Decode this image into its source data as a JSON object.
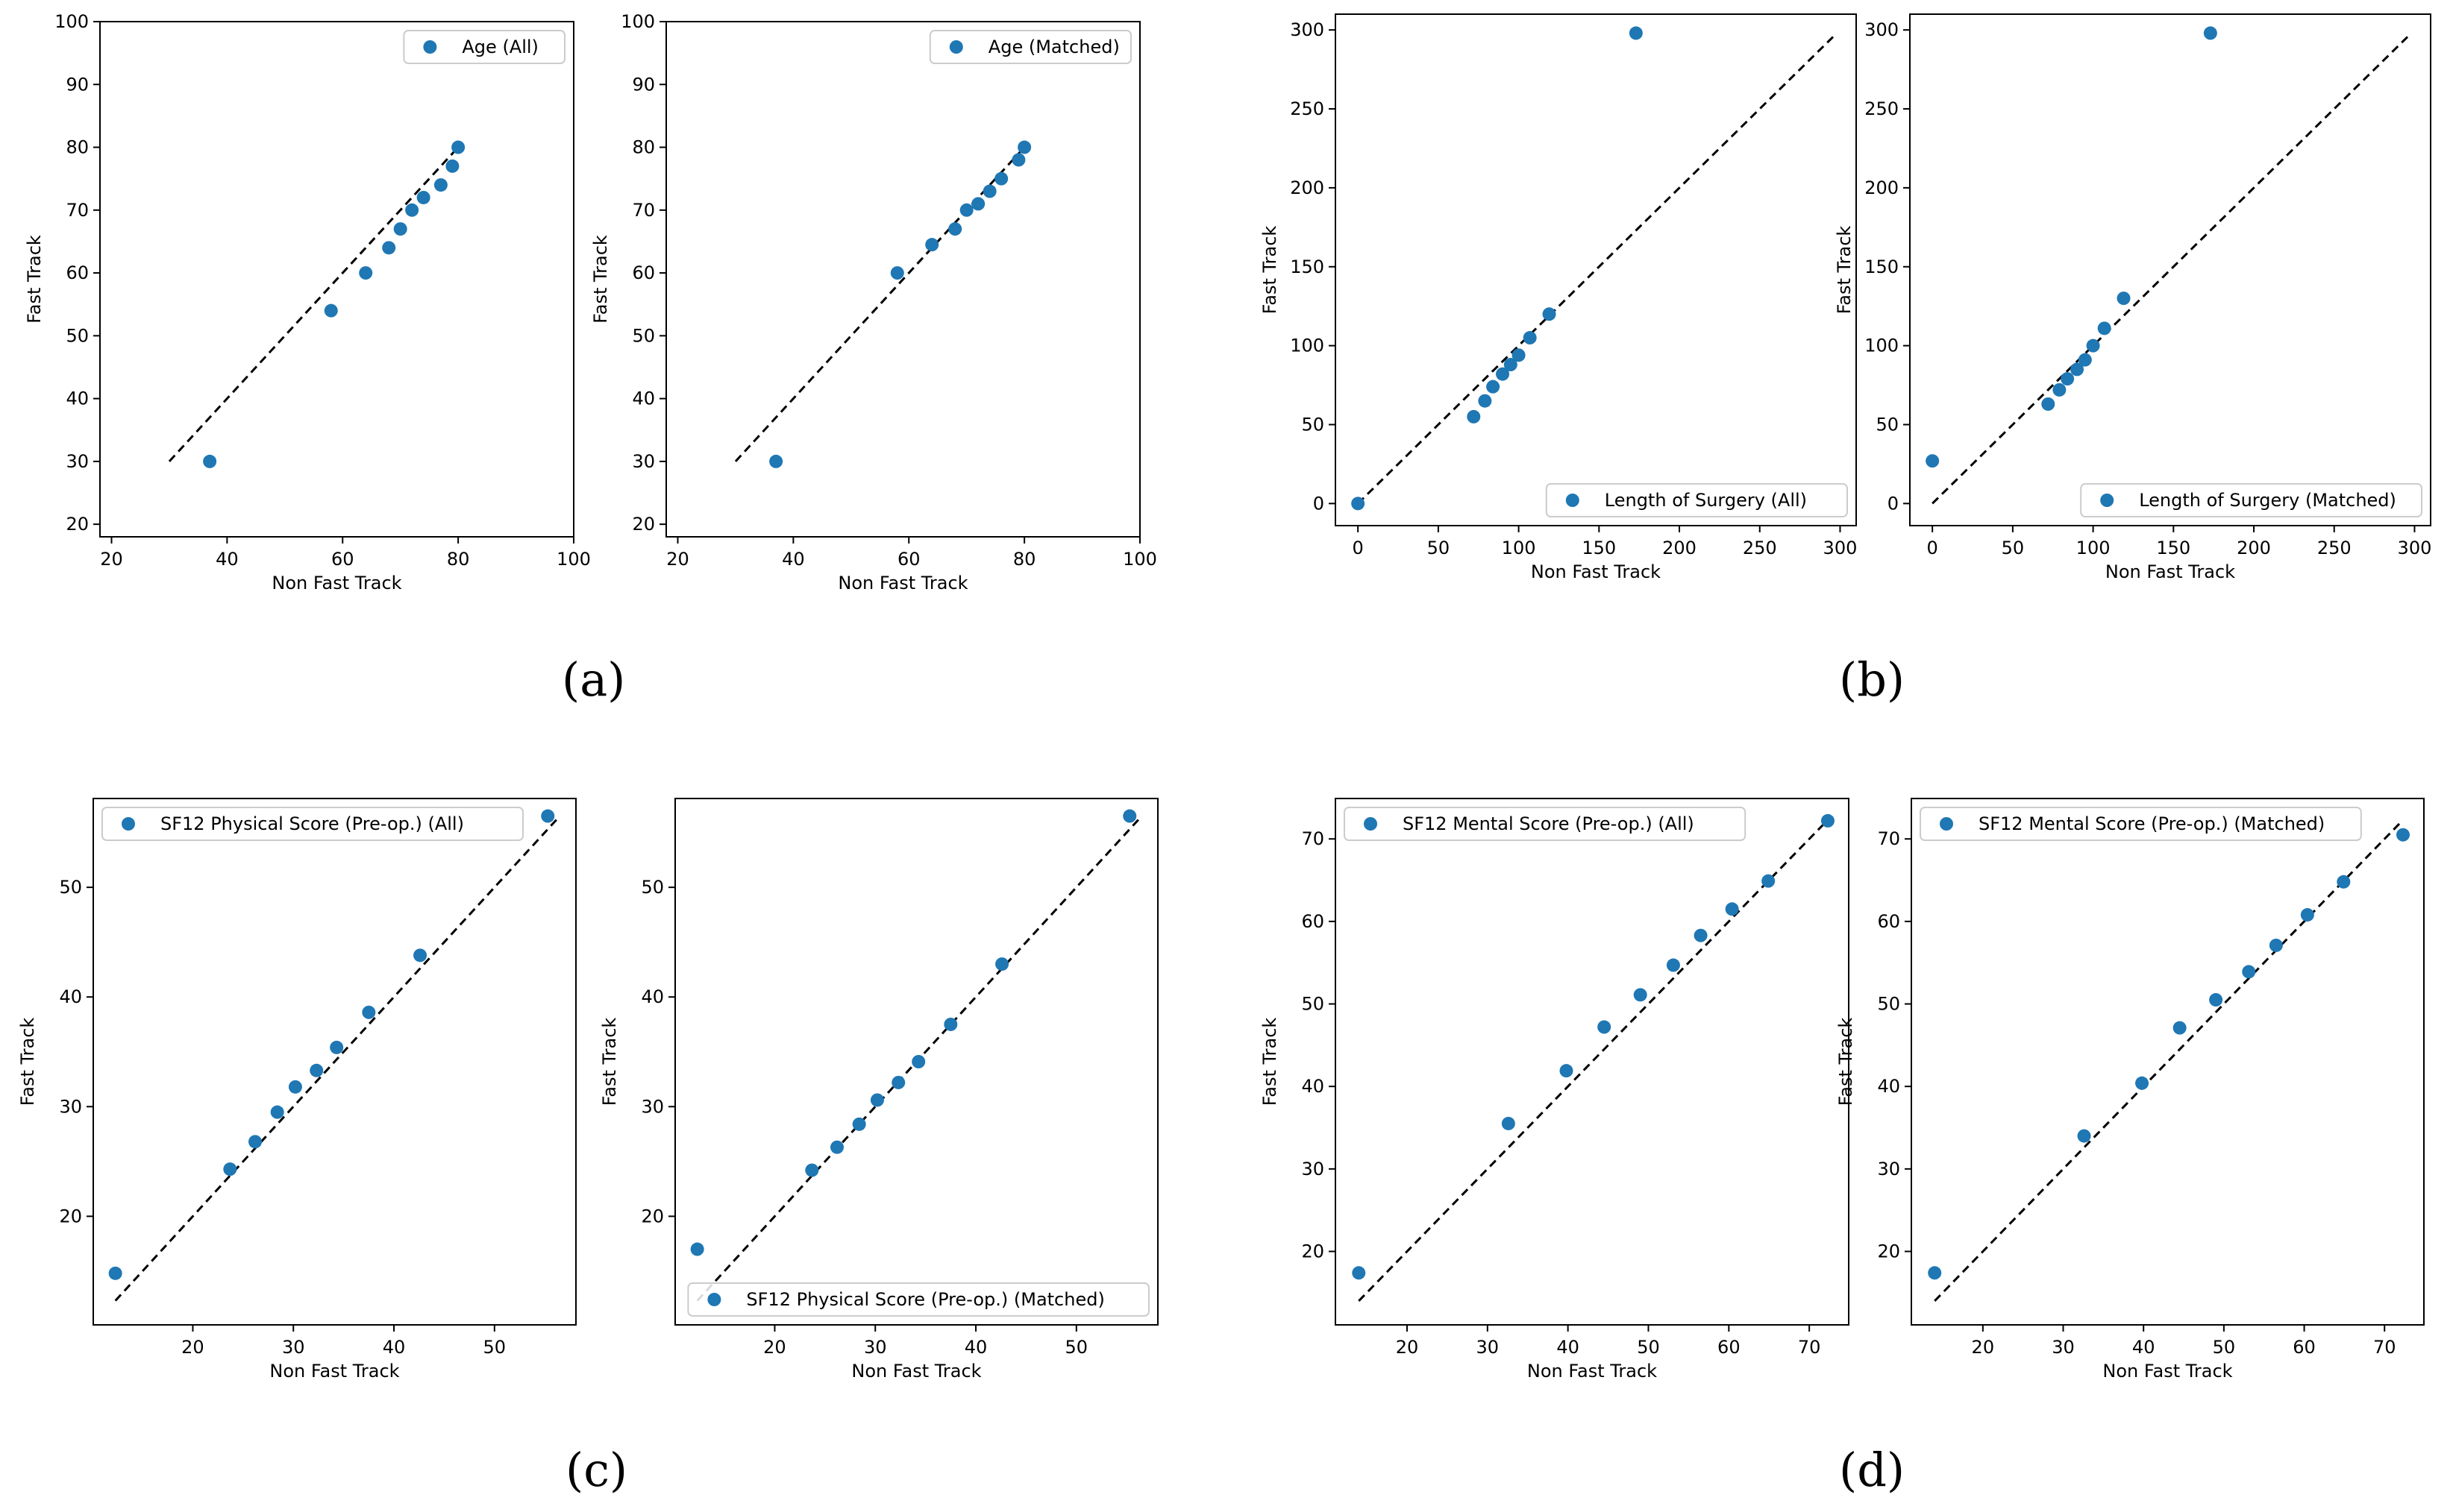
{
  "panel_labels": [
    "(a)",
    "(b)",
    "(c)",
    "(d)"
  ],
  "colors": {
    "marker": "#1f77b4",
    "diagonal": "#000000",
    "axis": "#000000",
    "legend_border": "#cccccc"
  },
  "chart_data": [
    {
      "type": "scatter",
      "panel": "(a)",
      "title": "",
      "xlabel": "Non Fast Track",
      "ylabel": "Fast Track",
      "xlim": [
        18,
        100
      ],
      "ylim": [
        18,
        100
      ],
      "xticks": [
        20,
        40,
        60,
        80,
        100
      ],
      "yticks": [
        20,
        30,
        40,
        50,
        60,
        70,
        80,
        90,
        100
      ],
      "legend": "Age (All)",
      "legend_loc": "top-right",
      "reference_line": [
        30,
        80
      ],
      "points": [
        [
          37,
          30
        ],
        [
          58,
          54
        ],
        [
          64,
          60
        ],
        [
          68,
          64
        ],
        [
          70,
          67
        ],
        [
          72,
          70
        ],
        [
          74,
          72
        ],
        [
          77,
          74
        ],
        [
          79,
          77
        ],
        [
          80,
          80
        ]
      ]
    },
    {
      "type": "scatter",
      "panel": "(a)",
      "title": "",
      "xlabel": "Non Fast Track",
      "ylabel": "Fast Track",
      "xlim": [
        18,
        100
      ],
      "ylim": [
        18,
        100
      ],
      "xticks": [
        20,
        40,
        60,
        80,
        100
      ],
      "yticks": [
        20,
        30,
        40,
        50,
        60,
        70,
        80,
        90,
        100
      ],
      "legend": "Age (Matched)",
      "legend_loc": "top-right",
      "reference_line": [
        30,
        80
      ],
      "points": [
        [
          37,
          30
        ],
        [
          58,
          60
        ],
        [
          64,
          64.5
        ],
        [
          68,
          67
        ],
        [
          70,
          70
        ],
        [
          72,
          71
        ],
        [
          74,
          73
        ],
        [
          76,
          75
        ],
        [
          79,
          78
        ],
        [
          80,
          80
        ]
      ]
    },
    {
      "type": "scatter",
      "panel": "(b)",
      "title": "",
      "xlabel": "Non Fast Track",
      "ylabel": "Fast Track",
      "xlim": [
        -14,
        310
      ],
      "ylim": [
        -14,
        310
      ],
      "xticks": [
        0,
        50,
        100,
        150,
        200,
        250,
        300
      ],
      "yticks": [
        0,
        50,
        100,
        150,
        200,
        250,
        300
      ],
      "legend": "Length of Surgery (All)",
      "legend_loc": "bottom-right",
      "reference_line": [
        0,
        297
      ],
      "points": [
        [
          0,
          0
        ],
        [
          72,
          55
        ],
        [
          79,
          65
        ],
        [
          84,
          74
        ],
        [
          90,
          82
        ],
        [
          95,
          88
        ],
        [
          100,
          94
        ],
        [
          107,
          105
        ],
        [
          119,
          120
        ],
        [
          173,
          298
        ]
      ]
    },
    {
      "type": "scatter",
      "panel": "(b)",
      "title": "",
      "xlabel": "Non Fast Track",
      "ylabel": "Fast Track",
      "xlim": [
        -14,
        310
      ],
      "ylim": [
        -14,
        310
      ],
      "xticks": [
        0,
        50,
        100,
        150,
        200,
        250,
        300
      ],
      "yticks": [
        0,
        50,
        100,
        150,
        200,
        250,
        300
      ],
      "legend": "Length of Surgery (Matched)",
      "legend_loc": "bottom-right",
      "reference_line": [
        0,
        297
      ],
      "points": [
        [
          0,
          27
        ],
        [
          72,
          63
        ],
        [
          79,
          72
        ],
        [
          84,
          79
        ],
        [
          90,
          85
        ],
        [
          95,
          91
        ],
        [
          100,
          100
        ],
        [
          107,
          111
        ],
        [
          119,
          130
        ],
        [
          173,
          298
        ]
      ]
    },
    {
      "type": "scatter",
      "panel": "(c)",
      "title": "",
      "xlabel": "Non Fast Track",
      "ylabel": "Fast Track",
      "xlim": [
        10.1,
        58.1
      ],
      "ylim": [
        10.1,
        58.1
      ],
      "xticks": [
        20,
        30,
        40,
        50
      ],
      "yticks": [
        20,
        30,
        40,
        50
      ],
      "legend": "SF12 Physical Score (Pre-op.) (All)",
      "legend_loc": "top-left",
      "reference_line": [
        12.3,
        56.3
      ],
      "points": [
        [
          12.3,
          14.8
        ],
        [
          23.7,
          24.3
        ],
        [
          26.2,
          26.8
        ],
        [
          28.4,
          29.5
        ],
        [
          30.2,
          31.8
        ],
        [
          32.3,
          33.3
        ],
        [
          34.3,
          35.4
        ],
        [
          37.5,
          38.6
        ],
        [
          42.6,
          43.8
        ],
        [
          55.3,
          56.5
        ]
      ]
    },
    {
      "type": "scatter",
      "panel": "(c)",
      "title": "",
      "xlabel": "Non Fast Track",
      "ylabel": "Fast Track",
      "xlim": [
        10.1,
        58.1
      ],
      "ylim": [
        10.1,
        58.1
      ],
      "xticks": [
        20,
        30,
        40,
        50
      ],
      "yticks": [
        20,
        30,
        40,
        50
      ],
      "legend": "SF12 Physical Score (Pre-op.) (Matched)",
      "legend_loc": "bottom-right",
      "reference_line": [
        12.3,
        56.3
      ],
      "points": [
        [
          12.3,
          17
        ],
        [
          23.7,
          24.2
        ],
        [
          26.2,
          26.3
        ],
        [
          28.4,
          28.4
        ],
        [
          30.2,
          30.6
        ],
        [
          32.3,
          32.2
        ],
        [
          34.3,
          34.1
        ],
        [
          37.5,
          37.5
        ],
        [
          42.6,
          43
        ],
        [
          55.3,
          56.5
        ]
      ]
    },
    {
      "type": "scatter",
      "panel": "(d)",
      "title": "",
      "xlabel": "Non Fast Track",
      "ylabel": "Fast Track",
      "xlim": [
        11.1,
        74.9
      ],
      "ylim": [
        11.1,
        74.9
      ],
      "xticks": [
        20,
        30,
        40,
        50,
        60,
        70
      ],
      "yticks": [
        20,
        30,
        40,
        50,
        60,
        70
      ],
      "legend": "SF12 Mental Score (Pre-op.) (All)",
      "legend_loc": "top-left",
      "reference_line": [
        14,
        72.2
      ],
      "points": [
        [
          14,
          17.4
        ],
        [
          32.6,
          35.5
        ],
        [
          39.8,
          41.9
        ],
        [
          44.5,
          47.2
        ],
        [
          49,
          51.1
        ],
        [
          53.1,
          54.7
        ],
        [
          56.5,
          58.3
        ],
        [
          60.4,
          61.5
        ],
        [
          64.9,
          64.9
        ],
        [
          72.3,
          72.2
        ]
      ]
    },
    {
      "type": "scatter",
      "panel": "(d)",
      "title": "",
      "xlabel": "Non Fast Track",
      "ylabel": "Fast Track",
      "xlim": [
        11.1,
        74.9
      ],
      "ylim": [
        11.1,
        74.9
      ],
      "xticks": [
        20,
        30,
        40,
        50,
        60,
        70
      ],
      "yticks": [
        20,
        30,
        40,
        50,
        60,
        70
      ],
      "legend": "SF12 Mental Score (Pre-op.) (Matched)",
      "legend_loc": "top-left",
      "reference_line": [
        14,
        72.2
      ],
      "points": [
        [
          14,
          17.4
        ],
        [
          32.6,
          34
        ],
        [
          39.8,
          40.4
        ],
        [
          44.5,
          47.1
        ],
        [
          49,
          50.5
        ],
        [
          53.1,
          53.9
        ],
        [
          56.5,
          57.1
        ],
        [
          60.4,
          60.8
        ],
        [
          64.9,
          64.8
        ],
        [
          72.3,
          70.5
        ]
      ]
    }
  ]
}
